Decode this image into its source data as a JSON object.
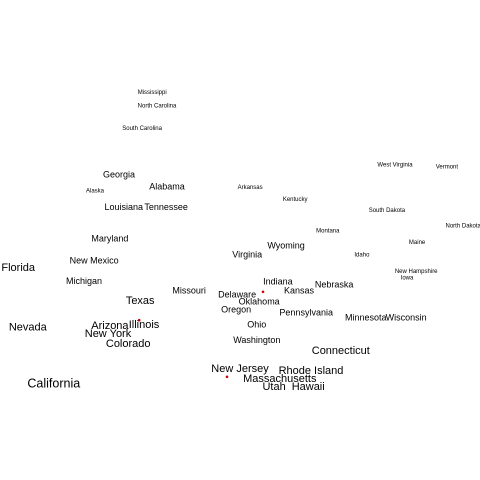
{
  "chart_data": {
    "type": "scatter",
    "title": "",
    "xlabel": "",
    "ylabel": "",
    "grid": false,
    "legend": "none",
    "label_color": "#000000",
    "marker_color": "#cc0000",
    "points": [
      {
        "label": "Mississippi",
        "x": 0.317,
        "y": 0.193,
        "size": 1
      },
      {
        "label": "North Carolina",
        "x": 0.327,
        "y": 0.221,
        "size": 1
      },
      {
        "label": "South Carolina",
        "x": 0.296,
        "y": 0.267,
        "size": 1
      },
      {
        "label": "West Virginia",
        "x": 0.823,
        "y": 0.344,
        "size": 1
      },
      {
        "label": "Vermont",
        "x": 0.931,
        "y": 0.348,
        "size": 1
      },
      {
        "label": "Georgia",
        "x": 0.248,
        "y": 0.365,
        "size": 2
      },
      {
        "label": "Alabama",
        "x": 0.348,
        "y": 0.39,
        "size": 2
      },
      {
        "label": "Alaska",
        "x": 0.198,
        "y": 0.398,
        "size": 1
      },
      {
        "label": "Arkansas",
        "x": 0.521,
        "y": 0.39,
        "size": 1
      },
      {
        "label": "Kentucky",
        "x": 0.615,
        "y": 0.415,
        "size": 1
      },
      {
        "label": "Louisiana",
        "x": 0.258,
        "y": 0.432,
        "size": 2
      },
      {
        "label": "Tennessee",
        "x": 0.346,
        "y": 0.432,
        "size": 2
      },
      {
        "label": "South Dakota",
        "x": 0.806,
        "y": 0.438,
        "size": 1
      },
      {
        "label": "North Dakota",
        "x": 0.965,
        "y": 0.471,
        "size": 1
      },
      {
        "label": "Montana",
        "x": 0.683,
        "y": 0.481,
        "size": 1
      },
      {
        "label": "Maryland",
        "x": 0.229,
        "y": 0.498,
        "size": 2
      },
      {
        "label": "Maine",
        "x": 0.869,
        "y": 0.505,
        "size": 1
      },
      {
        "label": "Wyoming",
        "x": 0.596,
        "y": 0.513,
        "size": 2
      },
      {
        "label": "Virginia",
        "x": 0.515,
        "y": 0.531,
        "size": 2
      },
      {
        "label": "Idaho",
        "x": 0.754,
        "y": 0.531,
        "size": 1
      },
      {
        "label": "New Mexico",
        "x": 0.196,
        "y": 0.544,
        "size": 2
      },
      {
        "label": "Florida",
        "x": 0.038,
        "y": 0.559,
        "size": 3
      },
      {
        "label": "New Hampshire",
        "x": 0.867,
        "y": 0.565,
        "size": 1
      },
      {
        "label": "Iowa",
        "x": 0.848,
        "y": 0.579,
        "size": 1
      },
      {
        "label": "Michigan",
        "x": 0.175,
        "y": 0.587,
        "size": 2
      },
      {
        "label": "Indiana",
        "x": 0.579,
        "y": 0.588,
        "size": 2
      },
      {
        "label": "Nebraska",
        "x": 0.696,
        "y": 0.594,
        "size": 2
      },
      {
        "label": "Kansas",
        "x": 0.623,
        "y": 0.606,
        "size": 2
      },
      {
        "label": "Missouri",
        "x": 0.394,
        "y": 0.606,
        "size": 2
      },
      {
        "label": "Delaware",
        "x": 0.494,
        "y": 0.615,
        "size": 2
      },
      {
        "label": "Oklahoma",
        "x": 0.54,
        "y": 0.629,
        "size": 2
      },
      {
        "label": "Texas",
        "x": 0.292,
        "y": 0.627,
        "size": 3
      },
      {
        "label": "Oregon",
        "x": 0.492,
        "y": 0.646,
        "size": 2
      },
      {
        "label": "Pennsylvania",
        "x": 0.638,
        "y": 0.652,
        "size": 2
      },
      {
        "label": "Minnesota",
        "x": 0.762,
        "y": 0.663,
        "size": 2
      },
      {
        "label": "Wisconsin",
        "x": 0.846,
        "y": 0.663,
        "size": 2
      },
      {
        "label": "Ohio",
        "x": 0.535,
        "y": 0.677,
        "size": 2
      },
      {
        "label": "Arizona",
        "x": 0.229,
        "y": 0.679,
        "size": 3
      },
      {
        "label": "Illinois",
        "x": 0.3,
        "y": 0.677,
        "size": 3
      },
      {
        "label": "Nevada",
        "x": 0.058,
        "y": 0.683,
        "size": 3
      },
      {
        "label": "New York",
        "x": 0.225,
        "y": 0.696,
        "size": 3
      },
      {
        "label": "Colorado",
        "x": 0.267,
        "y": 0.717,
        "size": 3
      },
      {
        "label": "Washington",
        "x": 0.535,
        "y": 0.71,
        "size": 2
      },
      {
        "label": "Connecticut",
        "x": 0.71,
        "y": 0.731,
        "size": 3
      },
      {
        "label": "New Jersey",
        "x": 0.5,
        "y": 0.769,
        "size": 3
      },
      {
        "label": "Rhode Island",
        "x": 0.648,
        "y": 0.773,
        "size": 3
      },
      {
        "label": "Massachusetts",
        "x": 0.583,
        "y": 0.79,
        "size": 3
      },
      {
        "label": "California",
        "x": 0.112,
        "y": 0.8,
        "size": 4
      },
      {
        "label": "Utah",
        "x": 0.571,
        "y": 0.806,
        "size": 3
      },
      {
        "label": "Hawaii",
        "x": 0.642,
        "y": 0.806,
        "size": 3
      }
    ],
    "markers": [
      {
        "x": 0.29,
        "y": 0.667
      },
      {
        "x": 0.548,
        "y": 0.608
      },
      {
        "x": 0.473,
        "y": 0.785
      }
    ]
  }
}
